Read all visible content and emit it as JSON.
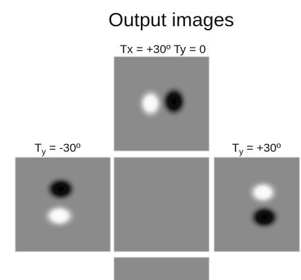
{
  "title": "Output images",
  "panels": {
    "top": {
      "label": "Tx = +30º Ty = 0"
    },
    "left": {
      "label": {
        "base": "T",
        "sub": "y",
        "rest": " = -30º"
      }
    },
    "right": {
      "label": {
        "base": "T",
        "sub": "y",
        "rest": " = +30º"
      }
    }
  }
}
